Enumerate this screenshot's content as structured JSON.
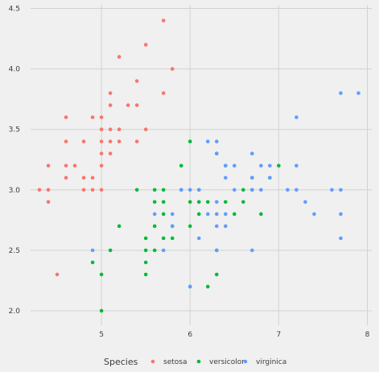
{
  "chart_data": {
    "type": "scatter",
    "title": "",
    "xlabel": "",
    "ylabel": "",
    "xlim": [
      4.2,
      8.05
    ],
    "ylim": [
      1.88,
      4.53
    ],
    "x_ticks": [
      5,
      6,
      7,
      8
    ],
    "y_ticks": [
      2.0,
      2.5,
      3.0,
      3.5,
      4.0,
      4.5
    ],
    "x_tick_labels": [
      "5",
      "6",
      "7",
      "8"
    ],
    "y_tick_labels": [
      "2.0",
      "2.5",
      "3.0",
      "3.5",
      "4.0",
      "4.5"
    ],
    "grid": true,
    "legend": {
      "title": "Species",
      "position": "bottom"
    },
    "series": [
      {
        "name": "setosa",
        "color": "#f8766d",
        "points": [
          [
            4.3,
            3.0
          ],
          [
            4.4,
            2.9
          ],
          [
            4.4,
            3.0
          ],
          [
            4.4,
            3.2
          ],
          [
            4.5,
            2.3
          ],
          [
            4.6,
            3.1
          ],
          [
            4.6,
            3.2
          ],
          [
            4.6,
            3.4
          ],
          [
            4.6,
            3.6
          ],
          [
            4.7,
            3.2
          ],
          [
            4.8,
            3.0
          ],
          [
            4.8,
            3.1
          ],
          [
            4.8,
            3.4
          ],
          [
            4.9,
            3.0
          ],
          [
            4.9,
            3.1
          ],
          [
            4.9,
            3.6
          ],
          [
            5.0,
            3.0
          ],
          [
            5.0,
            3.2
          ],
          [
            5.0,
            3.3
          ],
          [
            5.0,
            3.4
          ],
          [
            5.0,
            3.5
          ],
          [
            5.0,
            3.6
          ],
          [
            5.1,
            3.3
          ],
          [
            5.1,
            3.4
          ],
          [
            5.1,
            3.5
          ],
          [
            5.1,
            3.7
          ],
          [
            5.1,
            3.8
          ],
          [
            5.2,
            3.4
          ],
          [
            5.2,
            3.5
          ],
          [
            5.2,
            4.1
          ],
          [
            5.3,
            3.7
          ],
          [
            5.4,
            3.4
          ],
          [
            5.4,
            3.7
          ],
          [
            5.4,
            3.9
          ],
          [
            5.5,
            3.5
          ],
          [
            5.5,
            4.2
          ],
          [
            5.7,
            3.8
          ],
          [
            5.7,
            4.4
          ],
          [
            5.8,
            4.0
          ]
        ]
      },
      {
        "name": "versicolor",
        "color": "#00ba38",
        "points": [
          [
            4.9,
            2.4
          ],
          [
            5.0,
            2.0
          ],
          [
            5.0,
            2.3
          ],
          [
            5.1,
            2.5
          ],
          [
            5.2,
            2.7
          ],
          [
            5.4,
            3.0
          ],
          [
            5.5,
            2.3
          ],
          [
            5.5,
            2.4
          ],
          [
            5.5,
            2.5
          ],
          [
            5.5,
            2.6
          ],
          [
            5.6,
            2.5
          ],
          [
            5.6,
            2.7
          ],
          [
            5.6,
            2.9
          ],
          [
            5.6,
            3.0
          ],
          [
            5.7,
            2.6
          ],
          [
            5.7,
            2.8
          ],
          [
            5.7,
            2.9
          ],
          [
            5.7,
            3.0
          ],
          [
            5.8,
            2.6
          ],
          [
            5.8,
            2.7
          ],
          [
            5.9,
            3.0
          ],
          [
            5.9,
            3.2
          ],
          [
            6.0,
            2.2
          ],
          [
            6.0,
            2.7
          ],
          [
            6.0,
            2.9
          ],
          [
            6.0,
            3.4
          ],
          [
            6.1,
            2.8
          ],
          [
            6.1,
            2.9
          ],
          [
            6.1,
            3.0
          ],
          [
            6.2,
            2.2
          ],
          [
            6.2,
            2.9
          ],
          [
            6.3,
            2.3
          ],
          [
            6.3,
            2.5
          ],
          [
            6.3,
            3.3
          ],
          [
            6.4,
            2.9
          ],
          [
            6.4,
            3.2
          ],
          [
            6.5,
            2.8
          ],
          [
            6.6,
            2.9
          ],
          [
            6.6,
            3.0
          ],
          [
            6.7,
            3.0
          ],
          [
            6.7,
            3.1
          ],
          [
            6.8,
            2.8
          ],
          [
            6.9,
            3.1
          ],
          [
            7.0,
            3.2
          ]
        ]
      },
      {
        "name": "virginica",
        "color": "#619cff",
        "points": [
          [
            4.9,
            2.5
          ],
          [
            5.6,
            2.8
          ],
          [
            5.7,
            2.5
          ],
          [
            5.8,
            2.7
          ],
          [
            5.8,
            2.8
          ],
          [
            5.9,
            3.0
          ],
          [
            6.0,
            2.2
          ],
          [
            6.0,
            3.0
          ],
          [
            6.1,
            2.6
          ],
          [
            6.1,
            3.0
          ],
          [
            6.2,
            2.8
          ],
          [
            6.2,
            3.4
          ],
          [
            6.3,
            2.5
          ],
          [
            6.3,
            2.7
          ],
          [
            6.3,
            2.8
          ],
          [
            6.3,
            2.9
          ],
          [
            6.3,
            3.3
          ],
          [
            6.3,
            3.4
          ],
          [
            6.4,
            2.7
          ],
          [
            6.4,
            2.8
          ],
          [
            6.4,
            3.1
          ],
          [
            6.4,
            3.2
          ],
          [
            6.5,
            3.0
          ],
          [
            6.5,
            3.2
          ],
          [
            6.7,
            2.5
          ],
          [
            6.7,
            3.0
          ],
          [
            6.7,
            3.1
          ],
          [
            6.7,
            3.3
          ],
          [
            6.8,
            3.0
          ],
          [
            6.8,
            3.2
          ],
          [
            6.9,
            3.1
          ],
          [
            6.9,
            3.2
          ],
          [
            7.1,
            3.0
          ],
          [
            7.2,
            3.0
          ],
          [
            7.2,
            3.2
          ],
          [
            7.2,
            3.6
          ],
          [
            7.3,
            2.9
          ],
          [
            7.4,
            2.8
          ],
          [
            7.6,
            3.0
          ],
          [
            7.7,
            2.6
          ],
          [
            7.7,
            2.8
          ],
          [
            7.7,
            3.0
          ],
          [
            7.7,
            3.8
          ],
          [
            7.9,
            3.8
          ]
        ]
      }
    ]
  }
}
